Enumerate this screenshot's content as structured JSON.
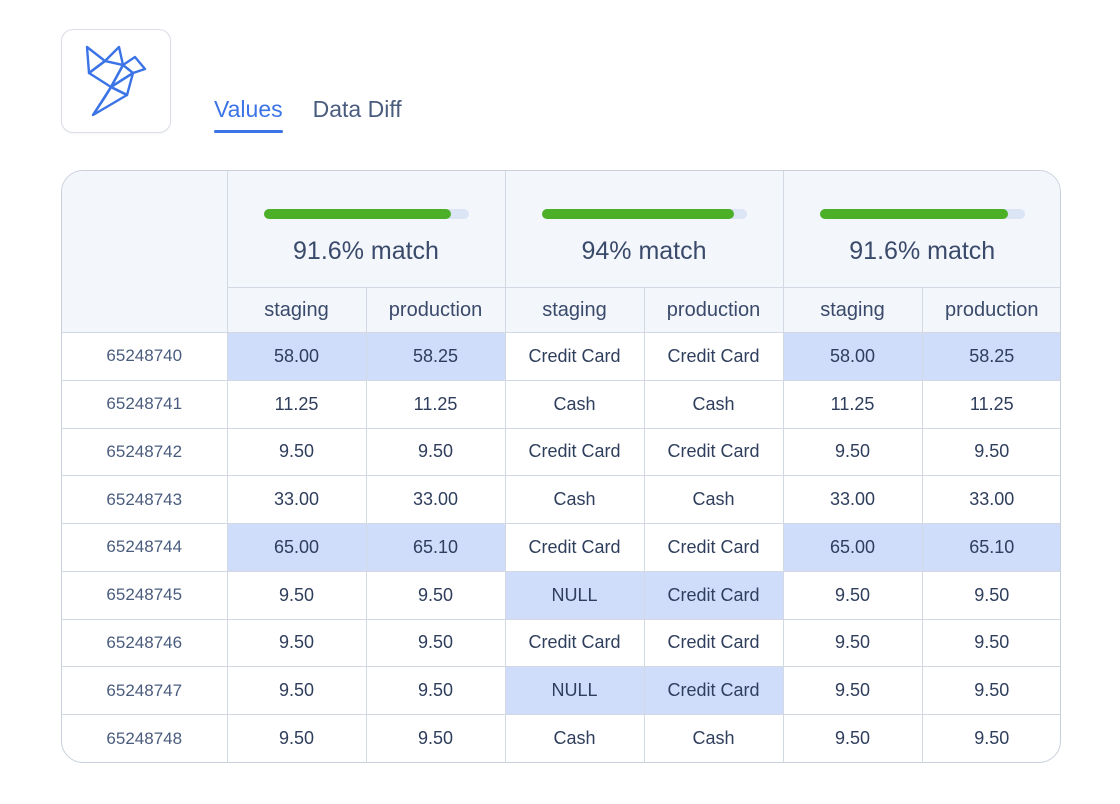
{
  "logo": {
    "icon": "origami-bird-icon",
    "color": "#3b74e6"
  },
  "tabs": [
    {
      "label": "Values",
      "active": true
    },
    {
      "label": "Data Diff",
      "active": false
    }
  ],
  "colors": {
    "accent": "#3b74e6",
    "match_bar": "#4caf28",
    "highlight": "#cfdcfa"
  },
  "columns": [
    {
      "match_pct": 0.916,
      "match_label": "91.6% match",
      "staging": "staging",
      "production": "production"
    },
    {
      "match_pct": 0.94,
      "match_label": "94% match",
      "staging": "staging",
      "production": "production"
    },
    {
      "match_pct": 0.916,
      "match_label": "91.6% match",
      "staging": "staging",
      "production": "production"
    }
  ],
  "rows": [
    {
      "id": "65248740",
      "cells": [
        "58.00",
        "58.25",
        "Credit Card",
        "Credit Card",
        "58.00",
        "58.25"
      ],
      "diff": [
        true,
        false,
        true
      ]
    },
    {
      "id": "65248741",
      "cells": [
        "11.25",
        "11.25",
        "Cash",
        "Cash",
        "11.25",
        "11.25"
      ],
      "diff": [
        false,
        false,
        false
      ]
    },
    {
      "id": "65248742",
      "cells": [
        "9.50",
        "9.50",
        "Credit Card",
        "Credit Card",
        "9.50",
        "9.50"
      ],
      "diff": [
        false,
        false,
        false
      ]
    },
    {
      "id": "65248743",
      "cells": [
        "33.00",
        "33.00",
        "Cash",
        "Cash",
        "33.00",
        "33.00"
      ],
      "diff": [
        false,
        false,
        false
      ]
    },
    {
      "id": "65248744",
      "cells": [
        "65.00",
        "65.10",
        "Credit Card",
        "Credit Card",
        "65.00",
        "65.10"
      ],
      "diff": [
        true,
        false,
        true
      ]
    },
    {
      "id": "65248745",
      "cells": [
        "9.50",
        "9.50",
        "NULL",
        "Credit Card",
        "9.50",
        "9.50"
      ],
      "diff": [
        false,
        true,
        false
      ]
    },
    {
      "id": "65248746",
      "cells": [
        "9.50",
        "9.50",
        "Credit Card",
        "Credit Card",
        "9.50",
        "9.50"
      ],
      "diff": [
        false,
        false,
        false
      ]
    },
    {
      "id": "65248747",
      "cells": [
        "9.50",
        "9.50",
        "NULL",
        "Credit Card",
        "9.50",
        "9.50"
      ],
      "diff": [
        false,
        true,
        false
      ]
    },
    {
      "id": "65248748",
      "cells": [
        "9.50",
        "9.50",
        "Cash",
        "Cash",
        "9.50",
        "9.50"
      ],
      "diff": [
        false,
        false,
        false
      ]
    }
  ]
}
